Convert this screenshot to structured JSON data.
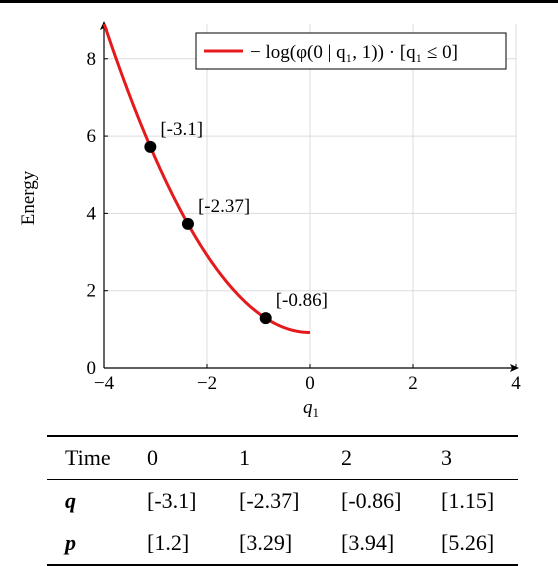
{
  "chart_data": {
    "type": "line",
    "title": "",
    "xlabel": "q",
    "xlabel_subscript": "1",
    "ylabel": "Energy",
    "xlim": [
      -4,
      4
    ],
    "ylim": [
      0,
      8.9
    ],
    "x_ticks": [
      -4,
      -2,
      0,
      2,
      4
    ],
    "x_tick_labels": [
      "−4",
      "−2",
      "0",
      "2",
      "4"
    ],
    "y_ticks": [
      0,
      2,
      4,
      6,
      8
    ],
    "y_tick_labels": [
      "0",
      "2",
      "4",
      "6",
      "8"
    ],
    "grid": true,
    "legend_position": "top-right",
    "series": [
      {
        "name": "− log(φ(0 | q₁, 1)) · [q₁ ≤ 0]",
        "color": "#e41a1c",
        "function": "0.5*x^2 + 0.919",
        "x_range": [
          -4,
          0
        ]
      }
    ],
    "points": [
      {
        "x": -3.1,
        "y": 5.72,
        "label": "[-3.1]"
      },
      {
        "x": -2.37,
        "y": 3.73,
        "label": "[-2.37]"
      },
      {
        "x": -0.86,
        "y": 1.29,
        "label": "[-0.86]"
      }
    ]
  },
  "table": {
    "header": [
      "Time",
      "0",
      "1",
      "2",
      "3"
    ],
    "rows": [
      {
        "name": "q",
        "values": [
          "[-3.1]",
          "[-2.37]",
          "[-0.86]",
          "[1.15]"
        ]
      },
      {
        "name": "p",
        "values": [
          "[1.2]",
          "[3.29]",
          "[3.94]",
          "[5.26]"
        ]
      }
    ]
  }
}
